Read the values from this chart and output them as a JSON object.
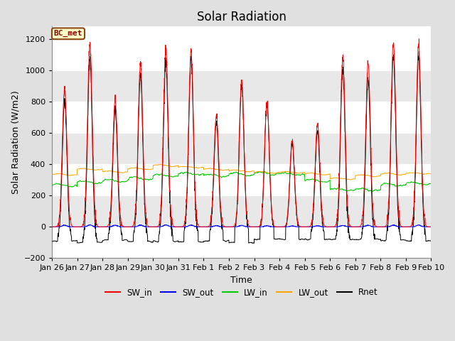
{
  "title": "Solar Radiation",
  "ylabel": "Solar Radiation (W/m2)",
  "xlabel": "Time",
  "ylim": [
    -200,
    1280
  ],
  "yticks": [
    -200,
    0,
    200,
    400,
    600,
    800,
    1000,
    1200
  ],
  "date_labels": [
    "Jan 26",
    "Jan 27",
    "Jan 28",
    "Jan 29",
    "Jan 30",
    "Jan 31",
    "Feb 1",
    "Feb 2",
    "Feb 3",
    "Feb 4",
    "Feb 5",
    "Feb 6",
    "Feb 7",
    "Feb 8",
    "Feb 9",
    "Feb 10"
  ],
  "colors": {
    "SW_in": "#FF0000",
    "SW_out": "#0000FF",
    "LW_in": "#00CC00",
    "LW_out": "#FFA500",
    "Rnet": "#000000"
  },
  "legend_label": "BC_met",
  "legend_box_color": "#FFFFC8",
  "legend_box_edge": "#8B4513",
  "fig_bg_color": "#E0E0E0",
  "plot_bg_color": "#FFFFFF",
  "n_days": 15,
  "points_per_day": 144,
  "SW_in_peaks": [
    880,
    1170,
    820,
    1050,
    1130,
    1130,
    720,
    940,
    800,
    550,
    660,
    1090,
    1050,
    1190,
    1170,
    1200
  ],
  "SW_out_peaks": [
    10,
    12,
    10,
    11,
    12,
    11,
    8,
    9,
    7,
    5,
    7,
    9,
    10,
    11,
    11,
    11
  ],
  "LW_in_base": [
    265,
    285,
    295,
    310,
    330,
    340,
    328,
    338,
    342,
    338,
    295,
    238,
    238,
    268,
    278,
    288
  ],
  "LW_out_base": [
    335,
    368,
    352,
    372,
    392,
    382,
    368,
    358,
    348,
    348,
    338,
    308,
    328,
    338,
    342,
    348
  ],
  "night_rnet": [
    -90,
    -100,
    -85,
    -95,
    -90,
    -95,
    -90,
    -100,
    -80,
    -80,
    -80,
    -80,
    -80,
    -85,
    -90,
    -90
  ],
  "grid_color": "#FFFFFF",
  "band_color": "#E8E8E8",
  "title_fontsize": 12,
  "axis_fontsize": 9,
  "tick_fontsize": 8
}
